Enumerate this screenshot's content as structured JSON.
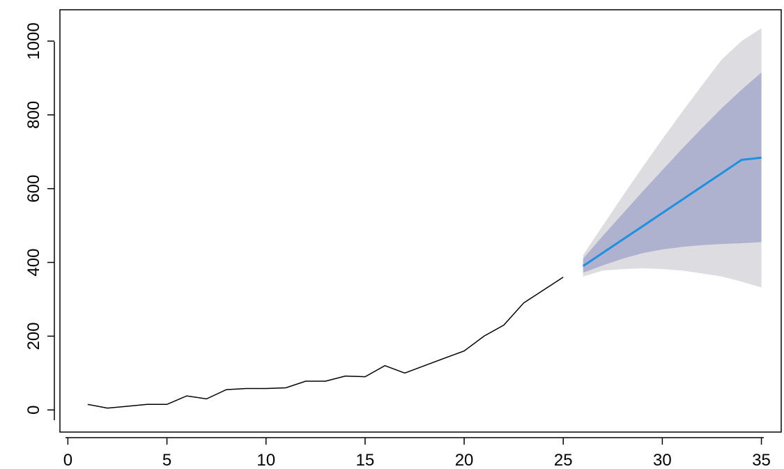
{
  "chart_data": {
    "type": "line",
    "title": "",
    "xlabel": "",
    "ylabel": "",
    "xlim": [
      -0.4,
      36.0
    ],
    "ylim": [
      -60,
      1085
    ],
    "x_ticks": [
      {
        "value": 0,
        "label": "0"
      },
      {
        "value": 5,
        "label": "5"
      },
      {
        "value": 10,
        "label": "10"
      },
      {
        "value": 15,
        "label": "15"
      },
      {
        "value": 20,
        "label": "20"
      },
      {
        "value": 25,
        "label": "25"
      },
      {
        "value": 30,
        "label": "30"
      },
      {
        "value": 35,
        "label": "35"
      }
    ],
    "y_ticks": [
      {
        "value": 0,
        "label": "0"
      },
      {
        "value": 200,
        "label": "200"
      },
      {
        "value": 400,
        "label": "400"
      },
      {
        "value": 600,
        "label": "600"
      },
      {
        "value": 800,
        "label": "800"
      },
      {
        "value": 1000,
        "label": "1000"
      }
    ],
    "grid": false,
    "colors": {
      "observed": "#000000",
      "forecast": "#1f8fe0",
      "band_80": "#aeb2cf",
      "band_95": "#dcdce1"
    },
    "observed": {
      "x": [
        1,
        2,
        3,
        4,
        5,
        6,
        7,
        8,
        9,
        10,
        11,
        12,
        13,
        14,
        15,
        16,
        17,
        18,
        19,
        20,
        21,
        22,
        23,
        24,
        25
      ],
      "y": [
        15,
        5,
        10,
        15,
        15,
        38,
        30,
        55,
        58,
        58,
        60,
        78,
        78,
        92,
        90,
        120,
        100,
        120,
        140,
        160,
        200,
        230,
        290,
        325,
        360
      ]
    },
    "forecast": {
      "x": [
        26,
        27,
        28,
        29,
        30,
        31,
        32,
        33,
        34,
        35
      ],
      "mean": [
        390,
        426,
        462,
        498,
        534,
        570,
        606,
        642,
        678,
        684
      ],
      "lo80": [
        372,
        392,
        410,
        425,
        435,
        442,
        447,
        450,
        452,
        455
      ],
      "hi80": [
        410,
        472,
        532,
        592,
        650,
        708,
        764,
        818,
        868,
        915
      ],
      "lo95": [
        362,
        378,
        382,
        384,
        382,
        378,
        370,
        362,
        348,
        332
      ],
      "hi95": [
        420,
        500,
        580,
        658,
        734,
        808,
        880,
        950,
        1000,
        1035
      ]
    }
  }
}
